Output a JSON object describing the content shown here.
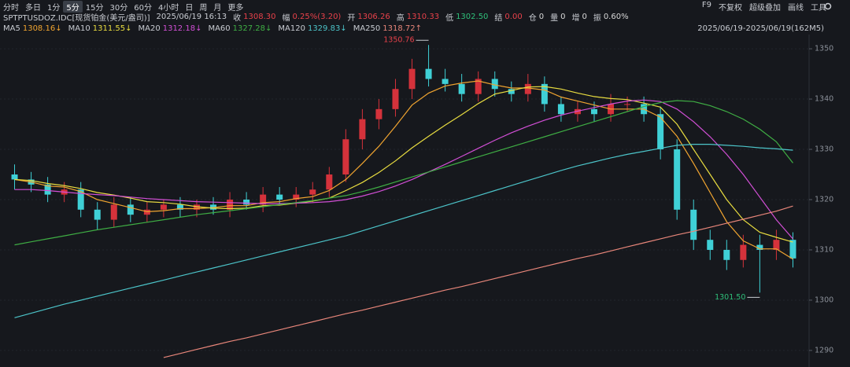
{
  "toolbar": {
    "tabs": [
      "分时",
      "多日",
      "1分",
      "5分",
      "15分",
      "30分",
      "60分",
      "4小时",
      "日",
      "周",
      "月",
      "更多"
    ],
    "active_tab": 3,
    "tools": [
      "F9",
      "不复权",
      "超级叠加",
      "画线",
      "工具"
    ]
  },
  "quote": {
    "symbol": "SPTPTUSDOZ.IDC[现货铂金(美元/盎司)]",
    "time": "2025/06/19 16:13",
    "fields": [
      {
        "label": "收",
        "value": "1308.30",
        "color": "#e8414a"
      },
      {
        "label": "幅",
        "value": "0.25%(3.20)",
        "color": "#e8414a"
      },
      {
        "label": "开",
        "value": "1306.26",
        "color": "#e8414a"
      },
      {
        "label": "高",
        "value": "1310.33",
        "color": "#e8414a"
      },
      {
        "label": "低",
        "value": "1302.50",
        "color": "#2fc07a"
      },
      {
        "label": "结",
        "value": "0.00",
        "color": "#e8414a"
      },
      {
        "label": "仓",
        "value": "0",
        "color": "#d8d8d8"
      },
      {
        "label": "量",
        "value": "0",
        "color": "#d8d8d8"
      },
      {
        "label": "增",
        "value": "0",
        "color": "#d8d8d8"
      },
      {
        "label": "振",
        "value": "0.60%",
        "color": "#d8d8d8"
      }
    ],
    "range": "2025/06/19-2025/06/19(162M5)"
  },
  "chart_data": {
    "type": "candlestick",
    "up_color": "#d5323b",
    "down_color": "#3fd0d6",
    "grid": true,
    "ylim": [
      1287.8,
      1352.2
    ],
    "yticks": [
      1290,
      1300,
      1310,
      1320,
      1330,
      1340,
      1350
    ],
    "high_label": "1350.76",
    "low_label": "1301.50",
    "open": [
      1325,
      1324,
      1323,
      1321,
      1322,
      1318,
      1316,
      1319,
      1317,
      1318,
      1319,
      1318,
      1319,
      1318,
      1320,
      1319,
      1321,
      1320,
      1321,
      1322,
      1325,
      1332,
      1336,
      1338,
      1342,
      1346,
      1344,
      1343,
      1341,
      1344,
      1342,
      1341,
      1343,
      1339,
      1337,
      1338,
      1337,
      1339,
      1339,
      1337,
      1330,
      1318,
      1312,
      1310,
      1308,
      1311,
      1310,
      1312
    ],
    "high": [
      1327,
      1325.5,
      1324.5,
      1323.5,
      1323.5,
      1319.5,
      1320.5,
      1320.5,
      1319.5,
      1320,
      1320.5,
      1320,
      1320.5,
      1321.5,
      1321.5,
      1322.5,
      1322.5,
      1322.5,
      1323.5,
      1326.5,
      1334,
      1338,
      1340,
      1344,
      1348,
      1350.76,
      1346,
      1345,
      1345.5,
      1345.5,
      1343.5,
      1345,
      1344.5,
      1340.5,
      1339.5,
      1339.5,
      1341,
      1340.5,
      1340.5,
      1338.5,
      1332,
      1320,
      1314,
      1312,
      1313,
      1313,
      1314,
      1313.5
    ],
    "low": [
      1322,
      1321.5,
      1319.5,
      1319.5,
      1316.5,
      1314,
      1314.5,
      1315.5,
      1315.5,
      1316.5,
      1316.5,
      1316.5,
      1317,
      1316.5,
      1318,
      1317.5,
      1319,
      1318.5,
      1319.5,
      1320.5,
      1323.5,
      1330,
      1334,
      1336.5,
      1340,
      1342.5,
      1341.5,
      1339.5,
      1339.5,
      1340.5,
      1339.5,
      1339.5,
      1337.5,
      1335.5,
      1335.5,
      1335.5,
      1335.5,
      1337.5,
      1335.5,
      1328,
      1316,
      1310,
      1308,
      1306,
      1306.5,
      1301.5,
      1308,
      1306.5
    ],
    "close": [
      1324,
      1323,
      1321,
      1322,
      1318,
      1316,
      1319,
      1317,
      1318,
      1319,
      1318,
      1319,
      1318,
      1320,
      1319,
      1321,
      1320,
      1321,
      1322,
      1325,
      1332,
      1336,
      1338,
      1342,
      1346,
      1344,
      1343,
      1341,
      1344,
      1342,
      1341,
      1343,
      1339,
      1337,
      1338,
      1337,
      1339,
      1339,
      1337,
      1330,
      1318,
      1312,
      1310,
      1308,
      1311,
      1310,
      1312,
      1308.3
    ],
    "series": [
      {
        "name": "MA5",
        "color": "#f0a430",
        "legend_label": "1308.16↓",
        "values": [
          1324,
          1323.5,
          1322.7,
          1322.5,
          1321.6,
          1320,
          1319.2,
          1318.4,
          1317.6,
          1317.8,
          1318.2,
          1318.2,
          1318.4,
          1318.8,
          1318.8,
          1319.4,
          1319.6,
          1320.2,
          1320.6,
          1321.8,
          1324,
          1327.2,
          1330.6,
          1334.6,
          1338.8,
          1341.2,
          1342.6,
          1343.2,
          1343.6,
          1342.8,
          1342.2,
          1342.2,
          1341.8,
          1340.4,
          1339.6,
          1338.8,
          1338,
          1338,
          1338,
          1336.4,
          1332.6,
          1327.2,
          1321.4,
          1315.6,
          1311.8,
          1310.2,
          1310.2,
          1308.16
        ]
      },
      {
        "name": "MA10",
        "color": "#e8dc40",
        "legend_label": "1311.55↓",
        "values": [
          1324,
          1323.8,
          1323.2,
          1322.8,
          1322.2,
          1321.4,
          1320.9,
          1320.3,
          1319.6,
          1319.4,
          1319.1,
          1318.6,
          1318.3,
          1318.2,
          1318.3,
          1318.8,
          1318.9,
          1319.3,
          1319.7,
          1320.3,
          1321.8,
          1323.4,
          1325.4,
          1327.7,
          1330.3,
          1332.6,
          1334.8,
          1336.9,
          1339.1,
          1341,
          1341.7,
          1342.4,
          1342.5,
          1342,
          1341.2,
          1340.5,
          1340.1,
          1339.9,
          1339.2,
          1338.4,
          1335,
          1330,
          1325,
          1320,
          1316,
          1313.5,
          1312.5,
          1311.55
        ]
      },
      {
        "name": "MA20",
        "color": "#d24fd6",
        "legend_label": "1312.18↓",
        "values": [
          1322,
          1322,
          1321.8,
          1321.5,
          1321.2,
          1321,
          1320.8,
          1320.5,
          1320.2,
          1320,
          1319.8,
          1319.6,
          1319.5,
          1319.4,
          1319.3,
          1319.2,
          1319.2,
          1319.3,
          1319.4,
          1319.6,
          1320,
          1320.7,
          1321.6,
          1322.7,
          1324,
          1325.5,
          1327,
          1328.6,
          1330.2,
          1331.8,
          1333.3,
          1334.6,
          1335.8,
          1336.8,
          1337.6,
          1338.3,
          1339,
          1339.6,
          1339.8,
          1339.5,
          1338,
          1335.5,
          1332.5,
          1329,
          1325,
          1320.5,
          1316,
          1312.18
        ]
      },
      {
        "name": "MA60",
        "color": "#3fae44",
        "legend_label": "1327.28↓",
        "values": [
          1311,
          1311.6,
          1312.2,
          1312.8,
          1313.4,
          1314,
          1314.5,
          1315,
          1315.5,
          1316,
          1316.5,
          1317,
          1317.4,
          1317.8,
          1318.2,
          1318.6,
          1319,
          1319.4,
          1319.8,
          1320.3,
          1320.8,
          1321.6,
          1322.5,
          1323.5,
          1324.5,
          1325.5,
          1326.5,
          1327.5,
          1328.5,
          1329.5,
          1330.5,
          1331.5,
          1332.5,
          1333.5,
          1334.5,
          1335.5,
          1336.5,
          1337.5,
          1338.5,
          1339.3,
          1339.7,
          1339.5,
          1338.7,
          1337.5,
          1336,
          1334,
          1331.5,
          1327.28
        ]
      },
      {
        "name": "MA120",
        "color": "#4cc4c9",
        "legend_label": "1329.83↓",
        "values": [
          1296.5,
          1297.4,
          1298.3,
          1299.2,
          1300,
          1300.8,
          1301.6,
          1302.4,
          1303.2,
          1304,
          1304.8,
          1305.6,
          1306.4,
          1307.2,
          1308,
          1308.8,
          1309.6,
          1310.4,
          1311.2,
          1312,
          1312.8,
          1313.8,
          1314.8,
          1315.8,
          1316.8,
          1317.8,
          1318.8,
          1319.8,
          1320.8,
          1321.8,
          1322.8,
          1323.8,
          1324.8,
          1325.8,
          1326.7,
          1327.5,
          1328.3,
          1329,
          1329.6,
          1330.2,
          1330.8,
          1331,
          1331,
          1330.8,
          1330.6,
          1330.3,
          1330.1,
          1329.83
        ]
      },
      {
        "name": "MA250",
        "color": "#e8867a",
        "legend_label": "1318.72↑",
        "values": [
          null,
          null,
          null,
          null,
          null,
          null,
          null,
          null,
          null,
          1288.6,
          1289.4,
          1290.2,
          1291,
          1291.8,
          1292.5,
          1293.3,
          1294.1,
          1294.9,
          1295.7,
          1296.5,
          1297.3,
          1298,
          1298.8,
          1299.6,
          1300.4,
          1301.2,
          1302,
          1302.7,
          1303.5,
          1304.3,
          1305.1,
          1305.9,
          1306.7,
          1307.5,
          1308.3,
          1309,
          1309.8,
          1310.6,
          1311.4,
          1312.2,
          1313,
          1313.7,
          1314.5,
          1315.3,
          1316.1,
          1316.9,
          1317.7,
          1318.72
        ]
      }
    ]
  }
}
